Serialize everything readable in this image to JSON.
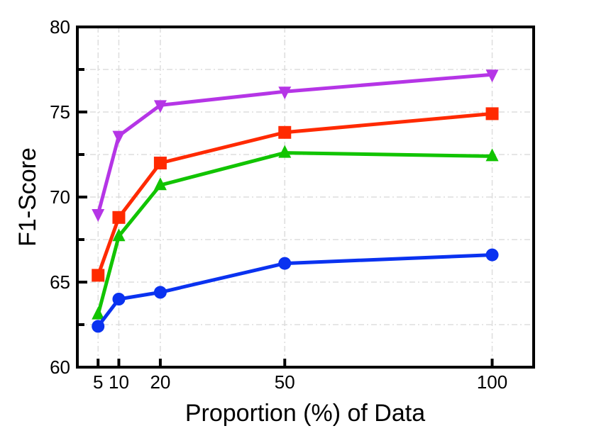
{
  "chart_data": {
    "type": "line",
    "title": "",
    "xlabel": "Proportion (%) of Data",
    "ylabel": "F1-Score",
    "x": [
      5,
      10,
      20,
      50,
      100
    ],
    "xticks": [
      "5",
      "10",
      "20",
      "50",
      "100"
    ],
    "yticks": [
      "60",
      "65",
      "70",
      "75",
      "80"
    ],
    "xlim": [
      0,
      110
    ],
    "ylim": [
      60,
      80
    ],
    "grid": true,
    "series": [
      {
        "color": "#b535e6",
        "marker": "triangle-down",
        "values": [
          69.0,
          73.6,
          75.4,
          76.2,
          77.2
        ]
      },
      {
        "color": "#ff2a00",
        "marker": "square",
        "values": [
          65.4,
          68.8,
          72.0,
          73.8,
          74.9
        ]
      },
      {
        "color": "#11c400",
        "marker": "triangle-up",
        "values": [
          63.1,
          67.7,
          70.7,
          72.6,
          72.4
        ]
      },
      {
        "color": "#0a32f0",
        "marker": "circle",
        "values": [
          62.4,
          64.0,
          64.4,
          66.1,
          66.6
        ]
      }
    ]
  }
}
